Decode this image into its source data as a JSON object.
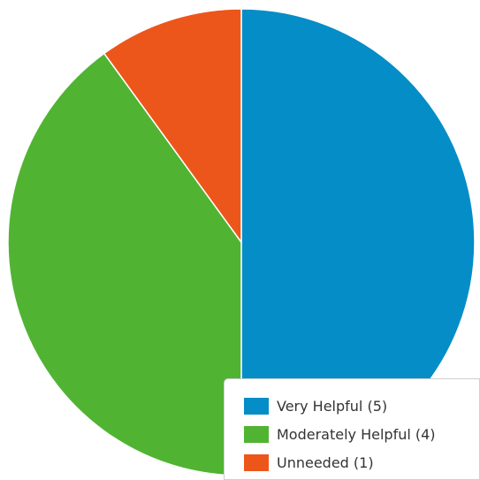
{
  "chart_data": {
    "type": "pie",
    "slices": [
      {
        "label": "Very Helpful",
        "value": 5,
        "color": "#058dc7"
      },
      {
        "label": "Moderately Helpful",
        "value": 4,
        "color": "#50b432"
      },
      {
        "label": "Unneeded",
        "value": 1,
        "color": "#ed561b"
      }
    ],
    "legend": {
      "placement": "bottom-right",
      "items": [
        "Very Helpful (5)",
        "Moderately Helpful (4)",
        "Unneeded (1)"
      ]
    }
  }
}
